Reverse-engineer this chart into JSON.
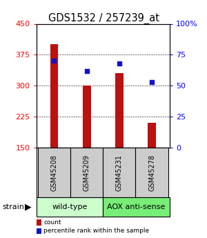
{
  "title": "GDS1532 / 257239_at",
  "samples": [
    "GSM45208",
    "GSM45209",
    "GSM45231",
    "GSM45278"
  ],
  "counts": [
    400,
    300,
    330,
    210
  ],
  "percentiles": [
    70,
    62,
    68,
    53
  ],
  "ylim_left": [
    150,
    450
  ],
  "ylim_right": [
    0,
    100
  ],
  "yticks_left": [
    150,
    225,
    300,
    375,
    450
  ],
  "yticks_right": [
    0,
    25,
    50,
    75,
    100
  ],
  "ytick_labels_right": [
    "0",
    "25",
    "50",
    "75",
    "100%"
  ],
  "bar_color": "#bb1111",
  "dot_color": "#1111cc",
  "groups": [
    {
      "label": "wild-type",
      "color": "#ccffcc",
      "indices": [
        0,
        1
      ]
    },
    {
      "label": "AOX anti-sense",
      "color": "#77ee77",
      "indices": [
        2,
        3
      ]
    }
  ],
  "strain_label": "strain",
  "legend_items": [
    {
      "color": "#bb1111",
      "label": "count"
    },
    {
      "color": "#1111cc",
      "label": "percentile rank within the sample"
    }
  ],
  "bar_width": 0.25,
  "base_value": 150,
  "sample_box_color": "#cccccc",
  "title_fontsize": 10.5,
  "axis_fontsize": 8,
  "label_fontsize": 7,
  "group_fontsize": 8
}
